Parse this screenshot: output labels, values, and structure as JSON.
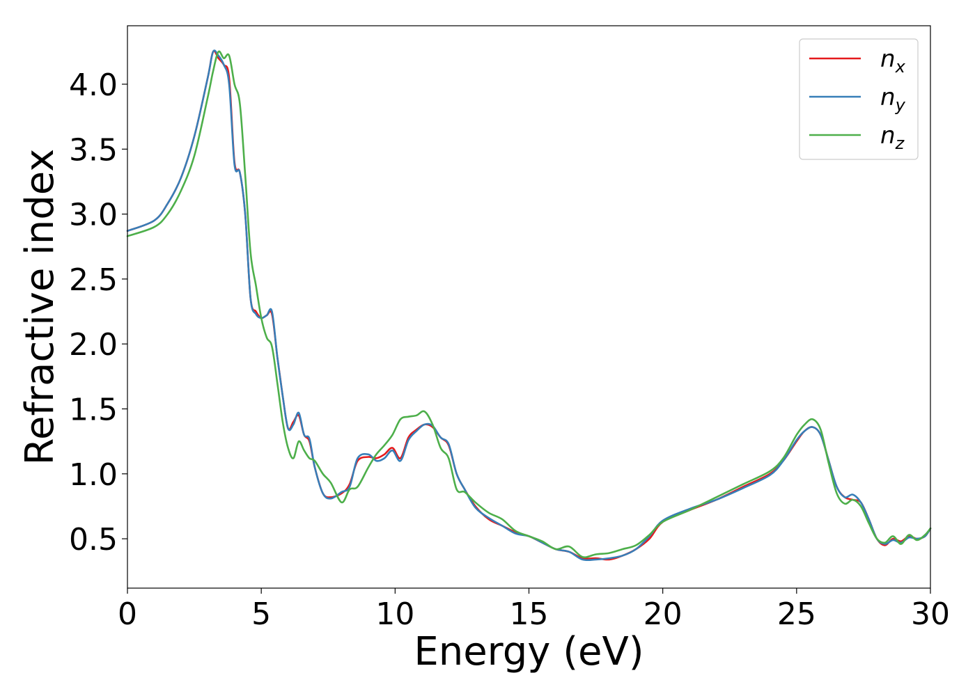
{
  "chart_data": {
    "type": "line",
    "xlabel": "Energy (eV)",
    "ylabel": "Refractive index",
    "xlim": [
      0,
      30
    ],
    "ylim": [
      0.12,
      4.45
    ],
    "xticks": [
      0,
      5,
      10,
      15,
      20,
      25,
      30
    ],
    "xtick_labels": [
      "0",
      "5",
      "10",
      "15",
      "20",
      "25",
      "30"
    ],
    "yticks": [
      0.5,
      1.0,
      1.5,
      2.0,
      2.5,
      3.0,
      3.5,
      4.0
    ],
    "ytick_labels": [
      "0.5",
      "1.0",
      "1.5",
      "2.0",
      "2.5",
      "3.0",
      "3.5",
      "4.0"
    ],
    "grid": false,
    "legend_position": "top-right",
    "series": [
      {
        "name": "n",
        "subscript": "x",
        "color": "#e41a1c",
        "x": [
          0,
          1,
          1.5,
          2,
          2.5,
          3,
          3.2,
          3.4,
          3.6,
          3.8,
          4.0,
          4.2,
          4.4,
          4.6,
          4.8,
          5.0,
          5.2,
          5.4,
          5.6,
          5.8,
          6.0,
          6.2,
          6.4,
          6.6,
          6.8,
          7.0,
          7.3,
          7.6,
          8.0,
          8.3,
          8.6,
          9.0,
          9.3,
          9.6,
          9.9,
          10.2,
          10.5,
          10.8,
          11.1,
          11.4,
          11.7,
          12.0,
          12.3,
          12.6,
          13.0,
          13.5,
          14.0,
          14.5,
          15.0,
          15.5,
          16.0,
          16.5,
          17.0,
          17.5,
          18.0,
          18.5,
          19.0,
          19.5,
          20.0,
          21.0,
          22.0,
          23.0,
          24.0,
          24.5,
          25.0,
          25.3,
          25.6,
          25.9,
          26.2,
          26.5,
          26.8,
          27.1,
          27.4,
          27.7,
          28.0,
          28.3,
          28.6,
          28.9,
          29.2,
          29.5,
          29.8,
          30.0
        ],
        "y": [
          2.87,
          2.95,
          3.08,
          3.28,
          3.6,
          4.05,
          4.25,
          4.2,
          4.15,
          4.05,
          3.4,
          3.32,
          3.0,
          2.35,
          2.25,
          2.2,
          2.22,
          2.23,
          1.9,
          1.6,
          1.35,
          1.4,
          1.45,
          1.3,
          1.25,
          1.05,
          0.85,
          0.82,
          0.85,
          0.92,
          1.1,
          1.13,
          1.12,
          1.15,
          1.2,
          1.12,
          1.28,
          1.34,
          1.38,
          1.36,
          1.28,
          1.22,
          1.0,
          0.88,
          0.75,
          0.65,
          0.6,
          0.55,
          0.52,
          0.47,
          0.42,
          0.4,
          0.35,
          0.35,
          0.34,
          0.37,
          0.42,
          0.5,
          0.63,
          0.72,
          0.8,
          0.9,
          1.0,
          1.1,
          1.25,
          1.33,
          1.36,
          1.3,
          1.1,
          0.9,
          0.82,
          0.8,
          0.78,
          0.65,
          0.5,
          0.45,
          0.5,
          0.48,
          0.52,
          0.5,
          0.52,
          0.58
        ]
      },
      {
        "name": "n",
        "subscript": "y",
        "color": "#377eb8",
        "x": [
          0,
          1,
          1.5,
          2,
          2.5,
          3,
          3.2,
          3.4,
          3.6,
          3.8,
          4.0,
          4.2,
          4.4,
          4.6,
          4.8,
          5.0,
          5.2,
          5.4,
          5.6,
          5.8,
          6.0,
          6.2,
          6.4,
          6.6,
          6.8,
          7.0,
          7.3,
          7.6,
          8.0,
          8.3,
          8.6,
          9.0,
          9.3,
          9.6,
          9.9,
          10.2,
          10.5,
          10.8,
          11.1,
          11.4,
          11.7,
          12.0,
          12.3,
          12.6,
          13.0,
          13.5,
          14.0,
          14.5,
          15.0,
          15.5,
          16.0,
          16.5,
          17.0,
          17.5,
          18.0,
          18.5,
          19.0,
          19.5,
          20.0,
          21.0,
          22.0,
          23.0,
          24.0,
          24.5,
          25.0,
          25.3,
          25.6,
          25.9,
          26.2,
          26.5,
          26.8,
          27.1,
          27.4,
          27.7,
          28.0,
          28.3,
          28.6,
          28.9,
          29.2,
          29.5,
          29.8,
          30.0
        ],
        "y": [
          2.87,
          2.95,
          3.08,
          3.28,
          3.6,
          4.05,
          4.25,
          4.22,
          4.15,
          4.0,
          3.38,
          3.32,
          3.0,
          2.35,
          2.23,
          2.2,
          2.22,
          2.25,
          1.9,
          1.6,
          1.35,
          1.38,
          1.47,
          1.3,
          1.27,
          1.05,
          0.85,
          0.81,
          0.86,
          0.9,
          1.12,
          1.15,
          1.1,
          1.12,
          1.18,
          1.1,
          1.26,
          1.33,
          1.38,
          1.37,
          1.28,
          1.23,
          1.0,
          0.88,
          0.74,
          0.66,
          0.6,
          0.54,
          0.52,
          0.47,
          0.42,
          0.4,
          0.34,
          0.34,
          0.35,
          0.37,
          0.42,
          0.52,
          0.64,
          0.73,
          0.8,
          0.89,
          0.99,
          1.1,
          1.26,
          1.33,
          1.36,
          1.3,
          1.1,
          0.9,
          0.82,
          0.84,
          0.78,
          0.65,
          0.5,
          0.46,
          0.49,
          0.47,
          0.51,
          0.5,
          0.52,
          0.58
        ]
      },
      {
        "name": "n",
        "subscript": "z",
        "color": "#4daf4a",
        "x": [
          0,
          1,
          1.5,
          2,
          2.5,
          3,
          3.2,
          3.4,
          3.6,
          3.8,
          4.0,
          4.2,
          4.4,
          4.6,
          4.8,
          5.0,
          5.2,
          5.4,
          5.6,
          5.8,
          6.0,
          6.2,
          6.4,
          6.6,
          6.8,
          7.0,
          7.3,
          7.6,
          8.0,
          8.3,
          8.6,
          9.0,
          9.3,
          9.6,
          9.9,
          10.2,
          10.5,
          10.8,
          11.1,
          11.4,
          11.7,
          12.0,
          12.3,
          12.6,
          13.0,
          13.5,
          14.0,
          14.5,
          15.0,
          15.5,
          16.0,
          16.5,
          17.0,
          17.5,
          18.0,
          18.5,
          19.0,
          19.5,
          20.0,
          21.0,
          22.0,
          23.0,
          24.0,
          24.5,
          25.0,
          25.3,
          25.6,
          25.9,
          26.2,
          26.5,
          26.8,
          27.1,
          27.4,
          27.7,
          28.0,
          28.3,
          28.6,
          28.9,
          29.2,
          29.5,
          29.8,
          30.0
        ],
        "y": [
          2.83,
          2.9,
          3.0,
          3.18,
          3.45,
          3.9,
          4.1,
          4.25,
          4.2,
          4.22,
          4.0,
          3.85,
          3.3,
          2.7,
          2.45,
          2.2,
          2.05,
          1.98,
          1.7,
          1.4,
          1.2,
          1.12,
          1.25,
          1.18,
          1.12,
          1.1,
          1.0,
          0.93,
          0.78,
          0.88,
          0.9,
          1.05,
          1.15,
          1.22,
          1.3,
          1.42,
          1.44,
          1.45,
          1.48,
          1.38,
          1.2,
          1.12,
          0.88,
          0.86,
          0.78,
          0.7,
          0.65,
          0.56,
          0.52,
          0.48,
          0.42,
          0.44,
          0.36,
          0.38,
          0.39,
          0.42,
          0.45,
          0.53,
          0.63,
          0.72,
          0.82,
          0.92,
          1.02,
          1.12,
          1.3,
          1.38,
          1.42,
          1.34,
          1.08,
          0.85,
          0.77,
          0.8,
          0.75,
          0.62,
          0.5,
          0.47,
          0.52,
          0.46,
          0.53,
          0.49,
          0.53,
          0.58
        ]
      }
    ]
  }
}
